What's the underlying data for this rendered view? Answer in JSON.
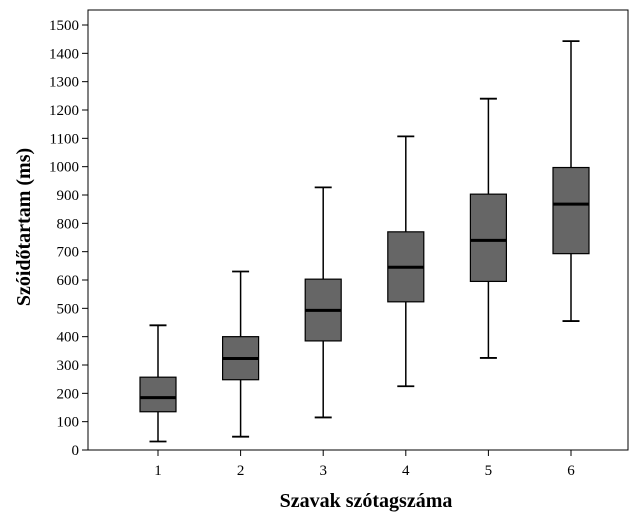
{
  "chart_data": {
    "type": "box",
    "title": "",
    "xlabel": "Szavak szótagszáma",
    "ylabel": "Szóidőtartam (ms)",
    "ylim": [
      0,
      1500
    ],
    "yticks": [
      0,
      100,
      200,
      300,
      400,
      500,
      600,
      700,
      800,
      900,
      1000,
      1100,
      1200,
      1300,
      1400,
      1500
    ],
    "categories": [
      "1",
      "2",
      "3",
      "4",
      "5",
      "6"
    ],
    "boxes": [
      {
        "category": "1",
        "min": 30,
        "q1": 135,
        "median": 185,
        "q3": 257,
        "max": 440
      },
      {
        "category": "2",
        "min": 47,
        "q1": 248,
        "median": 323,
        "q3": 400,
        "max": 630
      },
      {
        "category": "3",
        "min": 115,
        "q1": 385,
        "median": 493,
        "q3": 603,
        "max": 927
      },
      {
        "category": "4",
        "min": 225,
        "q1": 523,
        "median": 645,
        "q3": 770,
        "max": 1107
      },
      {
        "category": "5",
        "min": 325,
        "q1": 595,
        "median": 740,
        "q3": 903,
        "max": 1240
      },
      {
        "category": "6",
        "min": 455,
        "q1": 693,
        "median": 868,
        "q3": 997,
        "max": 1443
      }
    ],
    "box_color": "#666666",
    "grid": false
  }
}
